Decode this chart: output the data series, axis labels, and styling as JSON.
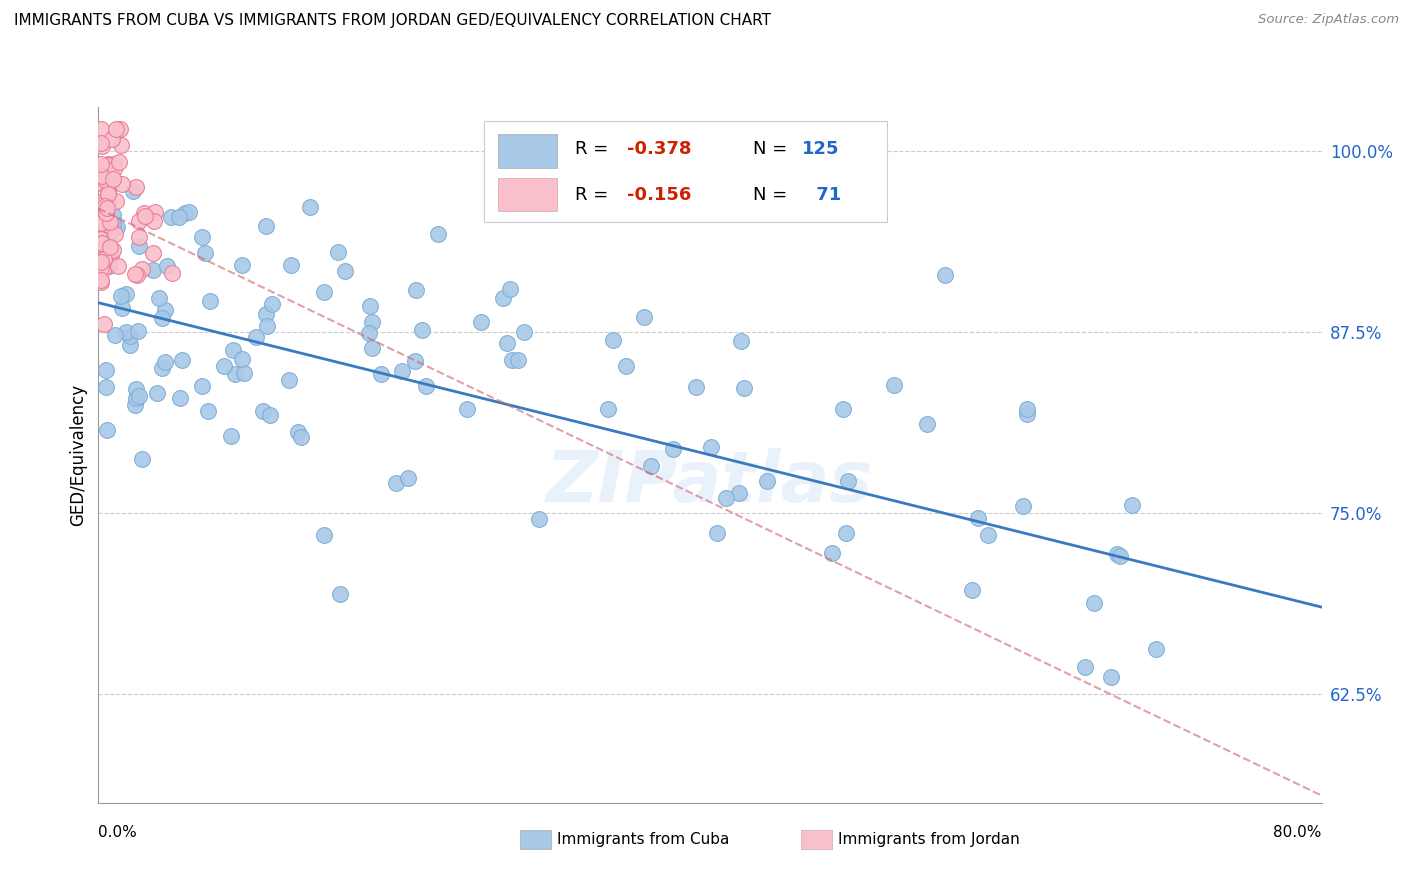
{
  "title": "IMMIGRANTS FROM CUBA VS IMMIGRANTS FROM JORDAN GED/EQUIVALENCY CORRELATION CHART",
  "source": "Source: ZipAtlas.com",
  "ylabel": "GED/Equivalency",
  "yticks": [
    62.5,
    75.0,
    87.5,
    100.0
  ],
  "ytick_labels": [
    "62.5%",
    "75.0%",
    "87.5%",
    "100.0%"
  ],
  "xmin": 0.0,
  "xmax": 80.0,
  "ymin": 55.0,
  "ymax": 103.0,
  "cuba_R": -0.378,
  "cuba_N": 125,
  "jordan_R": -0.156,
  "jordan_N": 71,
  "cuba_color": "#a8c8e8",
  "cuba_edge_color": "#7aadd4",
  "cuba_line_color": "#3a7abf",
  "jordan_color": "#f9c0cc",
  "jordan_edge_color": "#e87890",
  "jordan_line_color": "#d06070",
  "background_color": "#ffffff",
  "grid_color": "#cccccc",
  "title_fontsize": 11,
  "legend_val_color": "#cc2200",
  "legend_N_color": "#2266cc",
  "watermark": "ZIPatlas",
  "cuba_reg_x0": 0.0,
  "cuba_reg_y0": 89.5,
  "cuba_reg_x1": 80.0,
  "cuba_reg_y1": 68.5,
  "jordan_reg_x0": 0.0,
  "jordan_reg_y0": 96.0,
  "jordan_reg_x1": 80.0,
  "jordan_reg_y1": 55.5
}
